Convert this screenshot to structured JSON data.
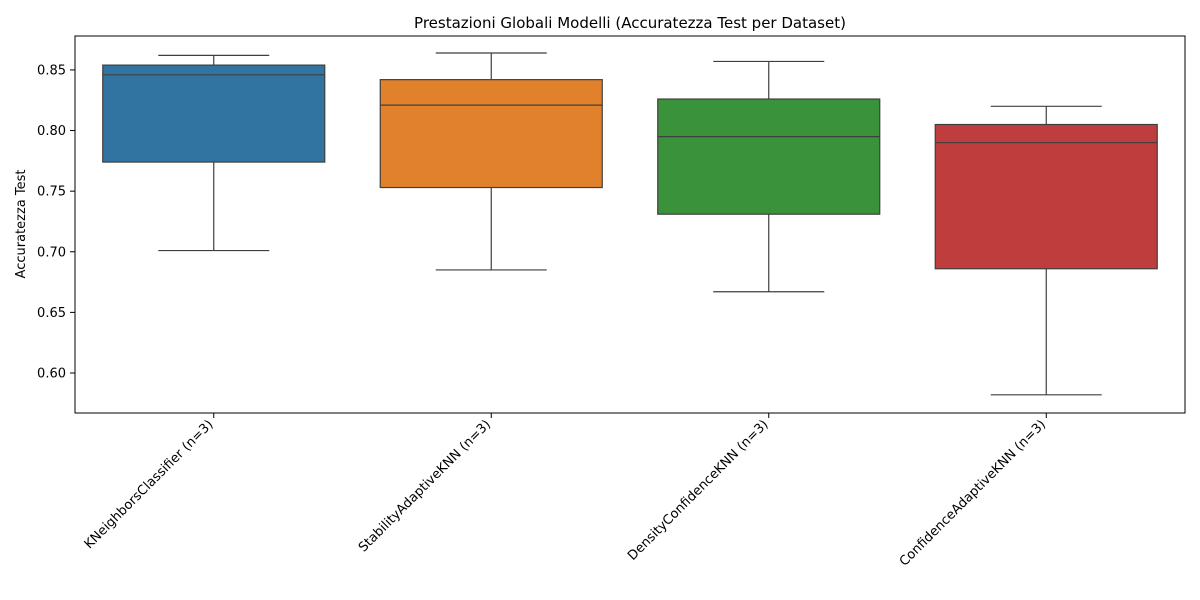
{
  "chart_data": {
    "type": "box",
    "title": "Prestazioni Globali Modelli (Accuratezza Test per Dataset)",
    "xlabel": "",
    "ylabel": "Accuratezza Test",
    "ylim": [
      0.567,
      0.878
    ],
    "yticks": [
      0.6,
      0.65,
      0.7,
      0.75,
      0.8,
      0.85
    ],
    "ytick_labels": [
      "0.60",
      "0.65",
      "0.70",
      "0.75",
      "0.80",
      "0.85"
    ],
    "grid": false,
    "categories": [
      "KNeighborsClassifier (n=3)",
      "StabilityAdaptiveKNN (n=3)",
      "DensityConfidenceKNN (n=3)",
      "ConfidenceAdaptiveKNN (n=3)"
    ],
    "boxes": [
      {
        "category": "KNeighborsClassifier (n=3)",
        "whisker_low": 0.701,
        "q1": 0.774,
        "median": 0.846,
        "q3": 0.854,
        "whisker_high": 0.862,
        "color": "#3274a1"
      },
      {
        "category": "StabilityAdaptiveKNN (n=3)",
        "whisker_low": 0.685,
        "q1": 0.753,
        "median": 0.821,
        "q3": 0.842,
        "whisker_high": 0.864,
        "color": "#e1812c"
      },
      {
        "category": "DensityConfidenceKNN (n=3)",
        "whisker_low": 0.667,
        "q1": 0.731,
        "median": 0.795,
        "q3": 0.826,
        "whisker_high": 0.857,
        "color": "#3a923a"
      },
      {
        "category": "ConfidenceAdaptiveKNN (n=3)",
        "whisker_low": 0.582,
        "q1": 0.686,
        "median": 0.79,
        "q3": 0.805,
        "whisker_high": 0.82,
        "color": "#c03d3e"
      }
    ]
  }
}
